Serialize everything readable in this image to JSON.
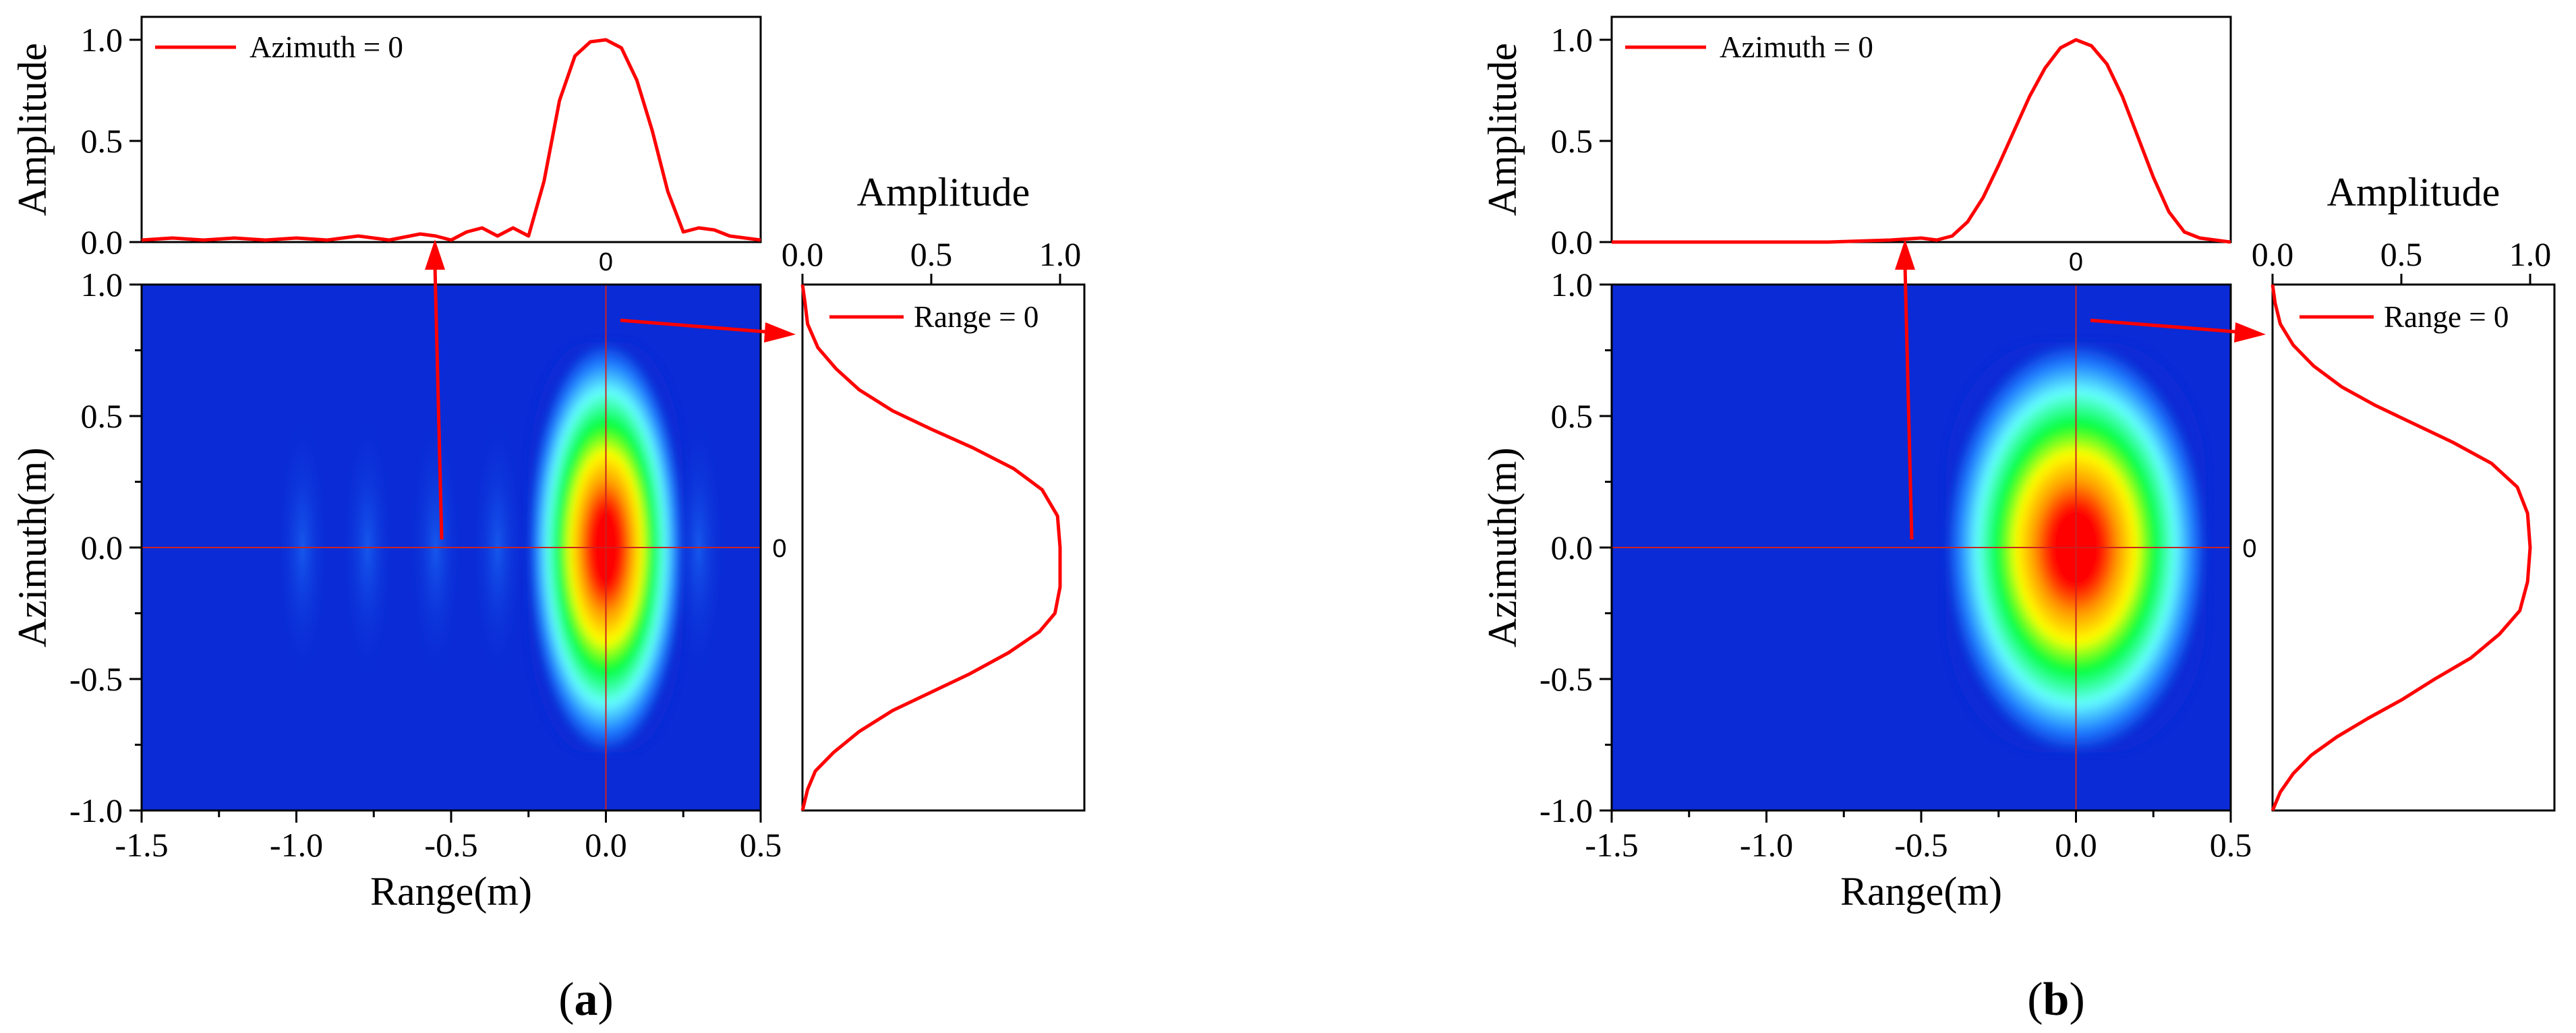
{
  "colors": {
    "curve": "#ff0000",
    "crosshair": "#cc2222",
    "background_blue": "#0a2bd6",
    "colormap": [
      "#0a2bd6",
      "#1f7cff",
      "#66ffff",
      "#00ff3a",
      "#ffff00",
      "#ff9900",
      "#ff0000"
    ]
  },
  "panels": [
    {
      "caption": "(a)",
      "caption_letter": "a",
      "zero_marks": {
        "top": "0",
        "side": "0"
      },
      "chart_data": [
        {
          "type": "heatmap",
          "xlabel": "Range(m)",
          "ylabel": "Azimuth(m)",
          "xlim": [
            -1.5,
            0.5
          ],
          "ylim": [
            -1.0,
            1.0
          ],
          "xticks": [
            "-1.5",
            "-1.0",
            "-0.5",
            "0.0",
            "0.5"
          ],
          "yticks": [
            "-1.0",
            "-0.5",
            "0.0",
            "0.5",
            "1.0"
          ],
          "crosshair": {
            "x": 0.0,
            "y": 0.0
          },
          "peak": {
            "x": 0.0,
            "y": 0.0
          },
          "sidelobe_x": [
            -0.98,
            -0.77,
            -0.55,
            -0.35,
            0.3
          ]
        },
        {
          "type": "line",
          "ylabel": "Amplitude",
          "xlim": [
            -1.5,
            0.5
          ],
          "ylim": [
            0.0,
            1.0
          ],
          "yticks": [
            "0.0",
            "0.5",
            "1.0"
          ],
          "series": [
            {
              "name": "Azimuth = 0",
              "x": [
                -1.5,
                -1.4,
                -1.3,
                -1.2,
                -1.1,
                -1.0,
                -0.9,
                -0.8,
                -0.7,
                -0.6,
                -0.55,
                -0.5,
                -0.45,
                -0.4,
                -0.35,
                -0.3,
                -0.25,
                -0.2,
                -0.15,
                -0.1,
                -0.05,
                0.0,
                0.05,
                0.1,
                0.15,
                0.2,
                0.25,
                0.3,
                0.35,
                0.4,
                0.45,
                0.5
              ],
              "values": [
                0.01,
                0.02,
                0.01,
                0.02,
                0.01,
                0.02,
                0.01,
                0.03,
                0.01,
                0.04,
                0.03,
                0.01,
                0.05,
                0.07,
                0.03,
                0.07,
                0.03,
                0.3,
                0.7,
                0.92,
                0.99,
                1.0,
                0.96,
                0.8,
                0.55,
                0.25,
                0.05,
                0.07,
                0.06,
                0.03,
                0.02,
                0.01
              ]
            }
          ]
        },
        {
          "type": "line",
          "xlabel": "Amplitude",
          "xlim": [
            0.0,
            1.0
          ],
          "ylim": [
            -1.0,
            1.0
          ],
          "xticks": [
            "0.0",
            "0.5",
            "1.0"
          ],
          "series": [
            {
              "name": "Range = 0",
              "values": [
                0.0,
                0.02,
                0.05,
                0.12,
                0.22,
                0.35,
                0.5,
                0.65,
                0.8,
                0.92,
                0.98,
                1.0,
                1.0,
                0.99,
                0.93,
                0.82,
                0.66,
                0.5,
                0.35,
                0.22,
                0.13,
                0.06,
                0.02,
                0.01,
                0.0
              ],
              "y": [
                -1.0,
                -0.92,
                -0.85,
                -0.78,
                -0.7,
                -0.62,
                -0.55,
                -0.48,
                -0.4,
                -0.32,
                -0.25,
                -0.15,
                0.0,
                0.12,
                0.22,
                0.3,
                0.38,
                0.45,
                0.52,
                0.6,
                0.68,
                0.76,
                0.85,
                0.93,
                1.0
              ]
            }
          ]
        }
      ]
    },
    {
      "caption": "(b)",
      "caption_letter": "b",
      "zero_marks": {
        "top": "0",
        "side": "0"
      },
      "chart_data": [
        {
          "type": "heatmap",
          "xlabel": "Range(m)",
          "ylabel": "Azimuth(m)",
          "xlim": [
            -1.5,
            0.5
          ],
          "ylim": [
            -1.0,
            1.0
          ],
          "xticks": [
            "-1.5",
            "-1.0",
            "-0.5",
            "0.0",
            "0.5"
          ],
          "yticks": [
            "-1.0",
            "-0.5",
            "0.0",
            "0.5",
            "1.0"
          ],
          "crosshair": {
            "x": 0.0,
            "y": 0.0
          },
          "peak": {
            "x": 0.0,
            "y": 0.0
          },
          "sidelobe_x": []
        },
        {
          "type": "line",
          "ylabel": "Amplitude",
          "xlim": [
            -1.5,
            0.5
          ],
          "ylim": [
            0.0,
            1.0
          ],
          "yticks": [
            "0.0",
            "0.5",
            "1.0"
          ],
          "series": [
            {
              "name": "Azimuth = 0",
              "x": [
                -1.5,
                -1.2,
                -1.0,
                -0.8,
                -0.6,
                -0.5,
                -0.45,
                -0.4,
                -0.35,
                -0.3,
                -0.25,
                -0.2,
                -0.15,
                -0.1,
                -0.05,
                0.0,
                0.05,
                0.1,
                0.15,
                0.2,
                0.25,
                0.3,
                0.35,
                0.4,
                0.45,
                0.5
              ],
              "values": [
                0.0,
                0.0,
                0.0,
                0.0,
                0.01,
                0.02,
                0.01,
                0.03,
                0.1,
                0.22,
                0.38,
                0.55,
                0.72,
                0.86,
                0.96,
                1.0,
                0.97,
                0.88,
                0.72,
                0.52,
                0.32,
                0.15,
                0.05,
                0.02,
                0.01,
                0.0
              ]
            }
          ]
        },
        {
          "type": "line",
          "xlabel": "Amplitude",
          "xlim": [
            0.0,
            1.0
          ],
          "ylim": [
            -1.0,
            1.0
          ],
          "xticks": [
            "0.0",
            "0.5",
            "1.0"
          ],
          "series": [
            {
              "name": "Range = 0",
              "values": [
                0.0,
                0.03,
                0.08,
                0.15,
                0.25,
                0.37,
                0.5,
                0.63,
                0.77,
                0.88,
                0.96,
                0.99,
                1.0,
                0.99,
                0.95,
                0.85,
                0.7,
                0.55,
                0.4,
                0.27,
                0.16,
                0.08,
                0.03,
                0.01,
                0.0
              ],
              "y": [
                -1.0,
                -0.93,
                -0.86,
                -0.79,
                -0.72,
                -0.65,
                -0.58,
                -0.5,
                -0.42,
                -0.33,
                -0.24,
                -0.13,
                0.0,
                0.13,
                0.23,
                0.32,
                0.4,
                0.47,
                0.54,
                0.61,
                0.69,
                0.77,
                0.85,
                0.93,
                1.0
              ]
            }
          ]
        }
      ]
    }
  ]
}
